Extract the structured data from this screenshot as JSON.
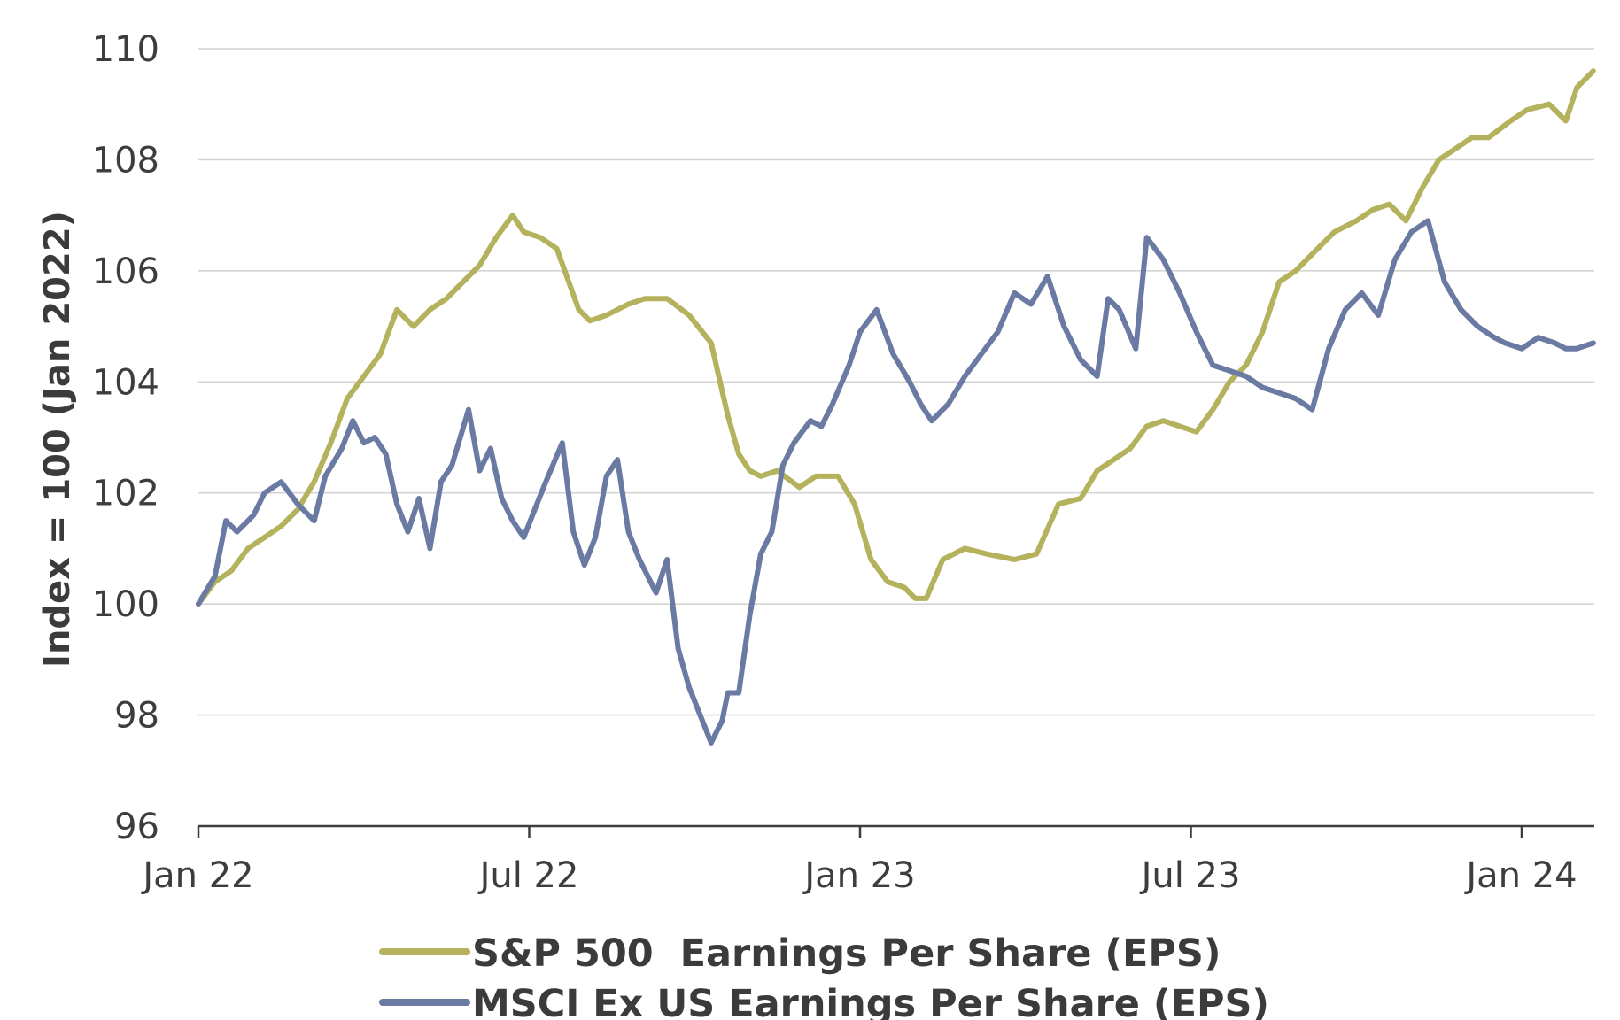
{
  "chart_data": {
    "type": "line",
    "title": "",
    "xlabel": "",
    "ylabel": "Index = 100 (Jan 2022)",
    "ylim": [
      96,
      110
    ],
    "yticks": [
      96,
      98,
      100,
      102,
      104,
      106,
      108,
      110
    ],
    "y_tick_labels": [
      "96",
      "98",
      "100",
      "102",
      "104",
      "106",
      "108",
      "110"
    ],
    "xlim": [
      0,
      25.3
    ],
    "x_unit": "months since Jan 2022",
    "x_ticks": [
      {
        "month": 0,
        "label": "Jan 22"
      },
      {
        "month": 6,
        "label": "Jul 22"
      },
      {
        "month": 12,
        "label": "Jan 23"
      },
      {
        "month": 18,
        "label": "Jul 23"
      },
      {
        "month": 24,
        "label": "Jan 24"
      }
    ],
    "grid": "horizontal",
    "legend_position": "bottom",
    "colors": {
      "sp500": "#b5b25e",
      "msci": "#6a7aa3",
      "axis": "#3d3d3d",
      "grid": "#d4d4d4",
      "text": "#3b3b3b"
    },
    "series": [
      {
        "name": "S&P 500  Earnings Per Share (EPS)",
        "color": "#b5b25e",
        "x": [
          0,
          0.3,
          0.6,
          0.9,
          1.2,
          1.5,
          1.8,
          2.1,
          2.4,
          2.7,
          3.0,
          3.3,
          3.6,
          3.9,
          4.2,
          4.5,
          4.8,
          5.1,
          5.4,
          5.7,
          5.9,
          6.2,
          6.5,
          6.9,
          7.1,
          7.4,
          7.8,
          8.1,
          8.5,
          8.9,
          9.3,
          9.6,
          9.8,
          10.0,
          10.2,
          10.5,
          10.9,
          11.2,
          11.6,
          11.9,
          12.2,
          12.5,
          12.8,
          13.0,
          13.2,
          13.5,
          13.7,
          13.9,
          14.3,
          14.8,
          15.2,
          15.6,
          16.0,
          16.3,
          16.6,
          16.9,
          17.2,
          17.5,
          17.8,
          18.1,
          18.4,
          18.7,
          19.0,
          19.3,
          19.6,
          19.9,
          20.2,
          20.6,
          21.0,
          21.3,
          21.6,
          21.9,
          22.2,
          22.5,
          22.8,
          23.1,
          23.4,
          23.8,
          24.1,
          24.5,
          24.8,
          25.0,
          25.3
        ],
        "values": [
          100.0,
          100.4,
          100.6,
          101.0,
          101.2,
          101.4,
          101.7,
          102.2,
          102.9,
          103.7,
          104.1,
          104.5,
          105.3,
          105.0,
          105.3,
          105.5,
          105.8,
          106.1,
          106.6,
          107.0,
          106.7,
          106.6,
          106.4,
          105.3,
          105.1,
          105.2,
          105.4,
          105.5,
          105.5,
          105.2,
          104.7,
          103.4,
          102.7,
          102.4,
          102.3,
          102.4,
          102.1,
          102.3,
          102.3,
          101.8,
          100.8,
          100.4,
          100.3,
          100.1,
          100.1,
          100.8,
          100.9,
          101.0,
          100.9,
          100.8,
          100.9,
          101.8,
          101.9,
          102.4,
          102.6,
          102.8,
          103.2,
          103.3,
          103.2,
          103.1,
          103.5,
          104.0,
          104.3,
          104.9,
          105.8,
          106.0,
          106.3,
          106.7,
          106.9,
          107.1,
          107.2,
          106.9,
          107.5,
          108.0,
          108.2,
          108.4,
          108.4,
          108.7,
          108.9,
          109.0,
          108.7,
          109.3,
          109.6
        ]
      },
      {
        "name": "MSCI Ex US Earnings Per Share (EPS)",
        "color": "#6a7aa3",
        "x": [
          0,
          0.3,
          0.5,
          0.7,
          1.0,
          1.2,
          1.5,
          1.8,
          2.1,
          2.3,
          2.6,
          2.8,
          3.0,
          3.2,
          3.4,
          3.6,
          3.8,
          4.0,
          4.2,
          4.4,
          4.6,
          4.9,
          5.1,
          5.3,
          5.5,
          5.7,
          5.9,
          6.1,
          6.3,
          6.6,
          6.8,
          7.0,
          7.2,
          7.4,
          7.6,
          7.8,
          8.0,
          8.3,
          8.5,
          8.7,
          8.9,
          9.1,
          9.3,
          9.5,
          9.6,
          9.8,
          10.0,
          10.2,
          10.4,
          10.6,
          10.8,
          11.1,
          11.3,
          11.5,
          11.8,
          12.0,
          12.3,
          12.6,
          12.9,
          13.1,
          13.3,
          13.6,
          13.9,
          14.2,
          14.5,
          14.8,
          15.1,
          15.4,
          15.7,
          16.0,
          16.3,
          16.5,
          16.7,
          17.0,
          17.2,
          17.5,
          17.8,
          18.1,
          18.4,
          18.7,
          19.0,
          19.3,
          19.6,
          19.9,
          20.2,
          20.5,
          20.8,
          21.1,
          21.4,
          21.7,
          22.0,
          22.3,
          22.6,
          22.9,
          23.2,
          23.5,
          23.7,
          24.0,
          24.3,
          24.6,
          24.8,
          25.0,
          25.3
        ],
        "values": [
          100.0,
          100.5,
          101.5,
          101.3,
          101.6,
          102.0,
          102.2,
          101.8,
          101.5,
          102.3,
          102.8,
          103.3,
          102.9,
          103.0,
          102.7,
          101.8,
          101.3,
          101.9,
          101.0,
          102.2,
          102.5,
          103.5,
          102.4,
          102.8,
          101.9,
          101.5,
          101.2,
          101.7,
          102.2,
          102.9,
          101.3,
          100.7,
          101.2,
          102.3,
          102.6,
          101.3,
          100.8,
          100.2,
          100.8,
          99.2,
          98.5,
          98.0,
          97.5,
          97.9,
          98.4,
          98.4,
          99.8,
          100.9,
          101.3,
          102.5,
          102.9,
          103.3,
          103.2,
          103.6,
          104.3,
          104.9,
          105.3,
          104.5,
          104.0,
          103.6,
          103.3,
          103.6,
          104.1,
          104.5,
          104.9,
          105.6,
          105.4,
          105.9,
          105.0,
          104.4,
          104.1,
          105.5,
          105.3,
          104.6,
          106.6,
          106.2,
          105.6,
          104.9,
          104.3,
          104.2,
          104.1,
          103.9,
          103.8,
          103.7,
          103.5,
          104.6,
          105.3,
          105.6,
          105.2,
          106.2,
          106.7,
          106.9,
          105.8,
          105.3,
          105.0,
          104.8,
          104.7,
          104.6,
          104.8,
          104.7,
          104.6,
          104.6,
          104.7
        ]
      }
    ]
  }
}
